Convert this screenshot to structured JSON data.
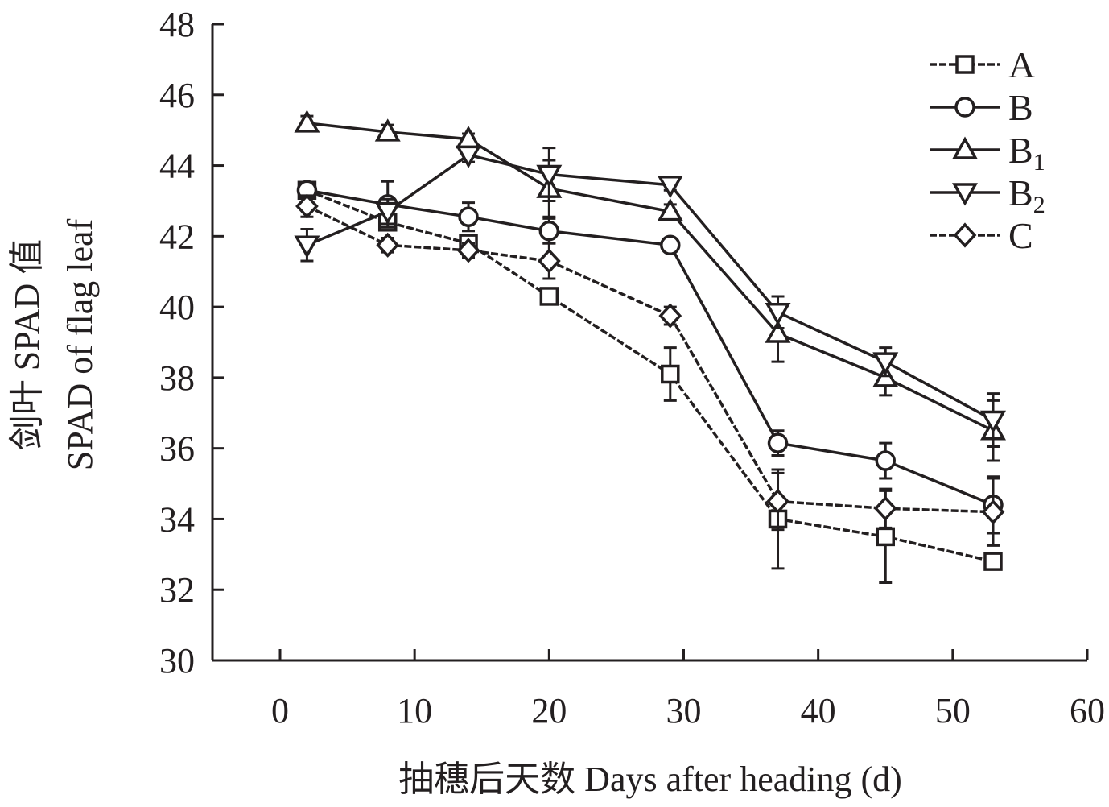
{
  "chart_data": {
    "type": "line",
    "title": "",
    "xlabel": "抽穗后天数 Days after heading (d)",
    "ylabel_cn": "剑叶 SPAD 值",
    "ylabel_en": "SPAD of flag leaf",
    "xlim": [
      0,
      60
    ],
    "ylim": [
      30,
      48
    ],
    "xticks": [
      0,
      10,
      20,
      30,
      40,
      50,
      60
    ],
    "yticks": [
      30,
      32,
      34,
      36,
      38,
      40,
      42,
      44,
      46,
      48
    ],
    "grid": false,
    "legend_position": "top-right",
    "x": [
      2,
      8,
      14,
      20,
      29,
      37,
      45,
      53
    ],
    "series": [
      {
        "name": "A",
        "marker": "square",
        "dashed": true,
        "values": [
          43.3,
          42.4,
          41.8,
          40.3,
          38.1,
          34.0,
          33.5,
          32.8
        ],
        "errors": [
          0.2,
          0.2,
          0.2,
          0.15,
          0.75,
          1.4,
          1.3,
          0.1
        ]
      },
      {
        "name": "B",
        "marker": "circle",
        "dashed": false,
        "values": [
          43.3,
          42.9,
          42.55,
          42.15,
          41.75,
          36.15,
          35.65,
          34.4
        ],
        "errors": [
          0.2,
          0.65,
          0.4,
          0.35,
          0.15,
          0.35,
          0.5,
          0.8
        ]
      },
      {
        "name": "B1",
        "sub": "1",
        "marker": "triangle-up",
        "dashed": false,
        "values": [
          45.2,
          44.95,
          44.75,
          43.35,
          42.7,
          39.25,
          38.0,
          36.5
        ],
        "errors": [
          0.2,
          0.2,
          0.15,
          0.8,
          0.2,
          0.8,
          0.5,
          0.85
        ]
      },
      {
        "name": "B2",
        "sub": "2",
        "marker": "triangle-down",
        "dashed": false,
        "values": [
          41.75,
          42.7,
          44.3,
          43.75,
          43.45,
          39.85,
          38.45,
          36.8
        ],
        "errors": [
          0.45,
          0.35,
          0.2,
          0.75,
          0.15,
          0.45,
          0.4,
          0.75
        ]
      },
      {
        "name": "C",
        "marker": "diamond",
        "dashed": true,
        "values": [
          42.85,
          41.75,
          41.6,
          41.3,
          39.75,
          34.5,
          34.3,
          34.2
        ],
        "errors": [
          0.3,
          0.2,
          0.2,
          0.5,
          0.25,
          0.8,
          0.55,
          0.95
        ]
      }
    ],
    "colors": {
      "line": "#231f20",
      "marker_fill": "#ffffff",
      "background": "#ffffff"
    }
  }
}
